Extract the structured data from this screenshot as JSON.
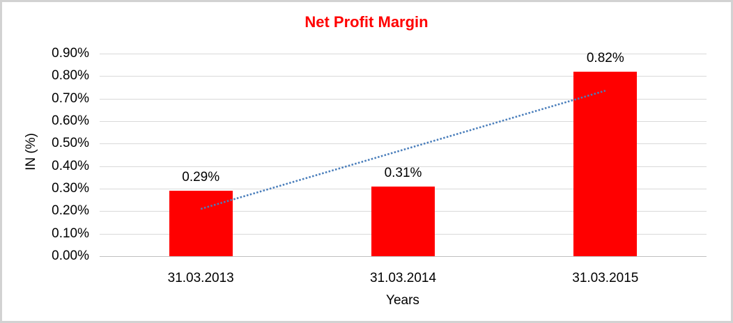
{
  "chart_data": {
    "type": "bar",
    "title": "Net Profit Margin",
    "xlabel": "Years",
    "ylabel": "IN (%)",
    "categories": [
      "31.03.2013",
      "31.03.2014",
      "31.03.2015"
    ],
    "series": [
      {
        "name": "Net Profit Margin",
        "values": [
          0.29,
          0.31,
          0.82
        ]
      }
    ],
    "value_labels": [
      "0.29%",
      "0.31%",
      "0.82%"
    ],
    "yticks": [
      {
        "value": 0.0,
        "label": "0.00%"
      },
      {
        "value": 0.1,
        "label": "0.10%"
      },
      {
        "value": 0.2,
        "label": "0.20%"
      },
      {
        "value": 0.3,
        "label": "0.30%"
      },
      {
        "value": 0.4,
        "label": "0.40%"
      },
      {
        "value": 0.5,
        "label": "0.50%"
      },
      {
        "value": 0.6,
        "label": "0.60%"
      },
      {
        "value": 0.7,
        "label": "0.70%"
      },
      {
        "value": 0.8,
        "label": "0.80%"
      },
      {
        "value": 0.9,
        "label": "0.90%"
      }
    ],
    "ylim": [
      0,
      0.9
    ],
    "grid": true,
    "legend": false,
    "colors": {
      "bar": "#ff0000",
      "title": "#ff0000",
      "gridline": "#d9d9d9",
      "axis_line": "#bfbfbf",
      "trendline": "#4a7ebb",
      "text": "#000000"
    },
    "trendline": {
      "type": "linear",
      "style": "dotted",
      "color": "#4a7ebb",
      "start_value": 0.21,
      "end_value": 0.735
    }
  }
}
